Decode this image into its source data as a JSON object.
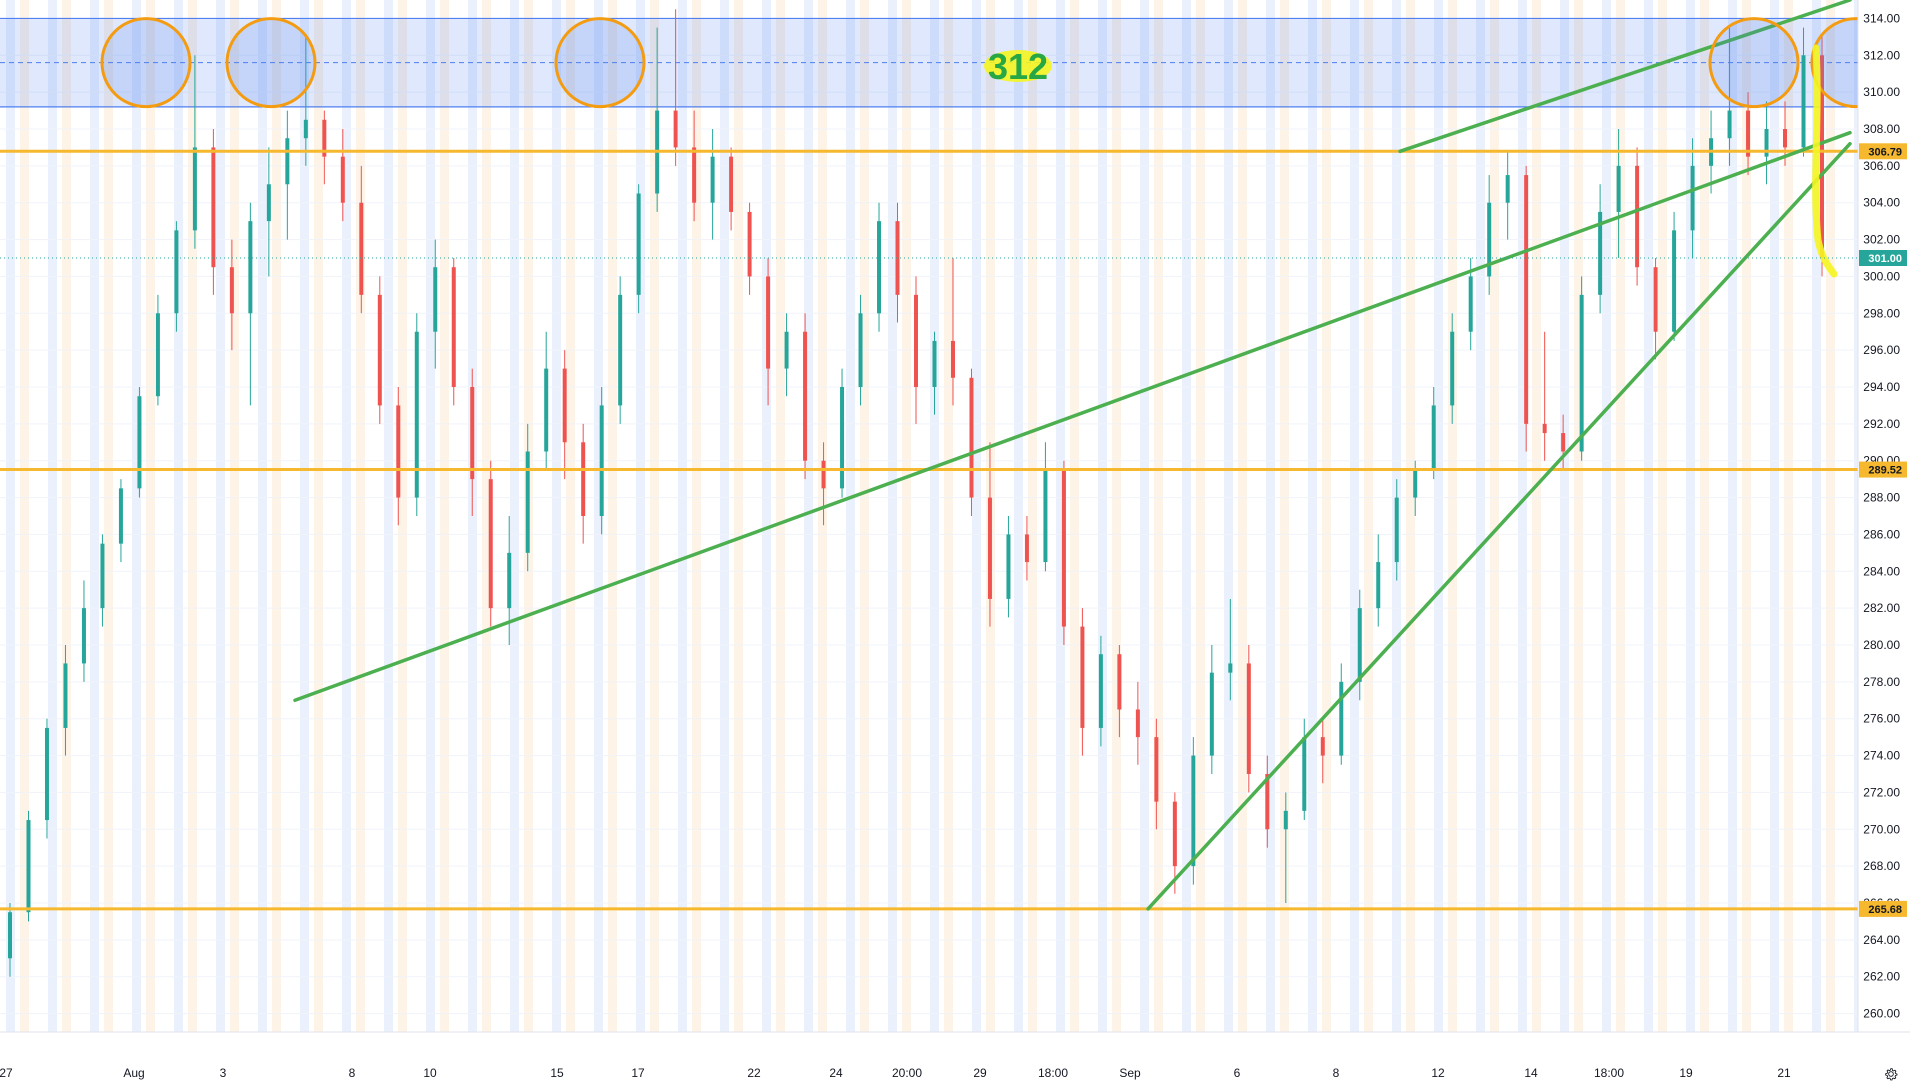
{
  "chart_data": {
    "type": "candlestick",
    "title": "",
    "xlabel": "",
    "ylabel": "",
    "ylim": [
      259,
      315
    ],
    "price_ticks": [
      260,
      262,
      264,
      266,
      268,
      270,
      272,
      274,
      276,
      278,
      280,
      282,
      284,
      286,
      288,
      290,
      292,
      294,
      296,
      298,
      300,
      302,
      304,
      306,
      308,
      310,
      312,
      314
    ],
    "time_ticks": [
      "27",
      "Aug",
      "3",
      "8",
      "10",
      "15",
      "17",
      "22",
      "24",
      "20:00",
      "29",
      "18:00",
      "Sep",
      "6",
      "8",
      "12",
      "14",
      "18:00",
      "19",
      "21"
    ],
    "current_price": {
      "value": 301.0,
      "label": "301.00",
      "color": "#26a69a"
    },
    "horizontal_levels": [
      {
        "value": 306.79,
        "label": "306.79",
        "color": "#f5b82e"
      },
      {
        "value": 289.52,
        "label": "289.52",
        "color": "#f5b82e"
      },
      {
        "value": 265.68,
        "label": "265.68",
        "color": "#f5b82e"
      }
    ],
    "resistance_zone": {
      "from": 309.2,
      "to": 314.0,
      "mid": 311.6,
      "color": "#4f7ff0"
    },
    "zone_annotation": {
      "text": "312",
      "text_color": "#28a745",
      "highlight_color": "#f5f520"
    },
    "trendlines": [
      {
        "name": "support-trendline",
        "from": [
          0,
          277.0
        ],
        "to": [
          1,
          307.8
        ],
        "color": "#4caf50"
      },
      {
        "name": "rising-wedge-lower",
        "from": [
          0,
          265.68
        ],
        "to": [
          1,
          307.2
        ],
        "color": "#4caf50"
      },
      {
        "name": "rising-wedge-upper",
        "from": [
          0,
          306.79
        ],
        "to": [
          1,
          315.0
        ],
        "color": "#4caf50"
      }
    ],
    "highlighted_touches": [
      {
        "price": 311.6
      },
      {
        "price": 311.6
      },
      {
        "price": 311.6
      },
      {
        "price": 311.6
      },
      {
        "price": 311.6
      }
    ],
    "candles": [
      [
        263.0,
        266.0,
        262.0,
        265.5
      ],
      [
        265.5,
        271.0,
        265.0,
        270.5
      ],
      [
        270.5,
        276.0,
        269.5,
        275.5
      ],
      [
        275.5,
        280.0,
        274.0,
        279.0
      ],
      [
        279.0,
        283.5,
        278.0,
        282.0
      ],
      [
        282.0,
        286.0,
        281.0,
        285.5
      ],
      [
        285.5,
        289.0,
        284.5,
        288.5
      ],
      [
        288.5,
        294.0,
        288.0,
        293.5
      ],
      [
        293.5,
        299.0,
        293.0,
        298.0
      ],
      [
        298.0,
        303.0,
        297.0,
        302.5
      ],
      [
        302.5,
        312.0,
        301.5,
        307.0
      ],
      [
        307.0,
        308.0,
        299.0,
        300.5
      ],
      [
        300.5,
        302.0,
        296.0,
        298.0
      ],
      [
        298.0,
        304.0,
        293.0,
        303.0
      ],
      [
        303.0,
        307.0,
        300.0,
        305.0
      ],
      [
        305.0,
        309.0,
        302.0,
        307.5
      ],
      [
        307.5,
        313.0,
        306.0,
        308.5
      ],
      [
        308.5,
        309.0,
        305.0,
        306.5
      ],
      [
        306.5,
        308.0,
        303.0,
        304.0
      ],
      [
        304.0,
        306.0,
        298.0,
        299.0
      ],
      [
        299.0,
        300.0,
        292.0,
        293.0
      ],
      [
        293.0,
        294.0,
        286.5,
        288.0
      ],
      [
        288.0,
        298.0,
        287.0,
        297.0
      ],
      [
        297.0,
        302.0,
        295.0,
        300.5
      ],
      [
        300.5,
        301.0,
        293.0,
        294.0
      ],
      [
        294.0,
        295.0,
        287.0,
        289.0
      ],
      [
        289.0,
        290.0,
        281.0,
        282.0
      ],
      [
        282.0,
        287.0,
        280.0,
        285.0
      ],
      [
        285.0,
        292.0,
        284.0,
        290.5
      ],
      [
        290.5,
        297.0,
        289.5,
        295.0
      ],
      [
        295.0,
        296.0,
        289.0,
        291.0
      ],
      [
        291.0,
        292.0,
        285.5,
        287.0
      ],
      [
        287.0,
        294.0,
        286.0,
        293.0
      ],
      [
        293.0,
        300.0,
        292.0,
        299.0
      ],
      [
        299.0,
        305.0,
        298.0,
        304.5
      ],
      [
        304.5,
        313.5,
        303.5,
        309.0
      ],
      [
        309.0,
        314.5,
        306.0,
        307.0
      ],
      [
        307.0,
        309.0,
        303.0,
        304.0
      ],
      [
        304.0,
        308.0,
        302.0,
        306.5
      ],
      [
        306.5,
        307.0,
        302.5,
        303.5
      ],
      [
        303.5,
        304.0,
        299.0,
        300.0
      ],
      [
        300.0,
        301.0,
        293.0,
        295.0
      ],
      [
        295.0,
        298.0,
        293.5,
        297.0
      ],
      [
        297.0,
        298.0,
        289.0,
        290.0
      ],
      [
        290.0,
        291.0,
        286.5,
        288.5
      ],
      [
        288.5,
        295.0,
        288.0,
        294.0
      ],
      [
        294.0,
        299.0,
        293.0,
        298.0
      ],
      [
        298.0,
        304.0,
        297.0,
        303.0
      ],
      [
        303.0,
        304.0,
        297.5,
        299.0
      ],
      [
        299.0,
        300.0,
        292.0,
        294.0
      ],
      [
        294.0,
        297.0,
        292.5,
        296.5
      ],
      [
        296.5,
        301.0,
        293.0,
        294.5
      ],
      [
        294.5,
        295.0,
        287.0,
        288.0
      ],
      [
        288.0,
        291.0,
        281.0,
        282.5
      ],
      [
        282.5,
        287.0,
        281.5,
        286.0
      ],
      [
        286.0,
        287.0,
        283.5,
        284.5
      ],
      [
        284.5,
        291.0,
        284.0,
        289.5
      ],
      [
        289.5,
        290.0,
        280.0,
        281.0
      ],
      [
        281.0,
        282.0,
        274.0,
        275.5
      ],
      [
        275.5,
        280.5,
        274.5,
        279.5
      ],
      [
        279.5,
        280.0,
        275.0,
        276.5
      ],
      [
        276.5,
        278.0,
        273.5,
        275.0
      ],
      [
        275.0,
        276.0,
        270.0,
        271.5
      ],
      [
        271.5,
        272.0,
        266.5,
        268.0
      ],
      [
        268.0,
        275.0,
        267.0,
        274.0
      ],
      [
        274.0,
        280.0,
        273.0,
        278.5
      ],
      [
        278.5,
        282.5,
        277.0,
        279.0
      ],
      [
        279.0,
        280.0,
        272.0,
        273.0
      ],
      [
        273.0,
        274.0,
        269.0,
        270.0
      ],
      [
        270.0,
        272.0,
        266.0,
        271.0
      ],
      [
        271.0,
        276.0,
        270.5,
        275.0
      ],
      [
        275.0,
        276.0,
        272.5,
        274.0
      ],
      [
        274.0,
        279.0,
        273.5,
        278.0
      ],
      [
        278.0,
        283.0,
        277.0,
        282.0
      ],
      [
        282.0,
        286.0,
        281.0,
        284.5
      ],
      [
        284.5,
        289.0,
        283.5,
        288.0
      ],
      [
        288.0,
        290.0,
        287.0,
        289.5
      ],
      [
        289.5,
        294.0,
        289.0,
        293.0
      ],
      [
        293.0,
        298.0,
        292.0,
        297.0
      ],
      [
        297.0,
        301.0,
        296.0,
        300.0
      ],
      [
        300.0,
        305.5,
        299.0,
        304.0
      ],
      [
        304.0,
        306.8,
        302.0,
        305.5
      ],
      [
        305.5,
        306.0,
        290.5,
        292.0
      ],
      [
        292.0,
        297.0,
        290.0,
        291.5
      ],
      [
        291.5,
        292.5,
        289.5,
        290.5
      ],
      [
        290.5,
        300.0,
        290.0,
        299.0
      ],
      [
        299.0,
        305.0,
        298.0,
        303.5
      ],
      [
        303.5,
        308.0,
        301.0,
        306.0
      ],
      [
        306.0,
        307.0,
        299.5,
        300.5
      ],
      [
        300.5,
        301.0,
        295.5,
        297.0
      ],
      [
        297.0,
        303.5,
        296.5,
        302.5
      ],
      [
        302.5,
        307.5,
        301.0,
        306.0
      ],
      [
        306.0,
        309.0,
        304.5,
        307.5
      ],
      [
        307.5,
        313.5,
        306.0,
        309.0
      ],
      [
        309.0,
        310.0,
        305.5,
        306.5
      ],
      [
        306.5,
        309.5,
        305.0,
        308.0
      ],
      [
        308.0,
        309.5,
        306.0,
        307.0
      ],
      [
        307.0,
        313.5,
        306.5,
        312.0
      ],
      [
        312.0,
        313.0,
        300.0,
        301.0
      ]
    ]
  },
  "ui": {
    "settings_icon": "gear-icon"
  }
}
